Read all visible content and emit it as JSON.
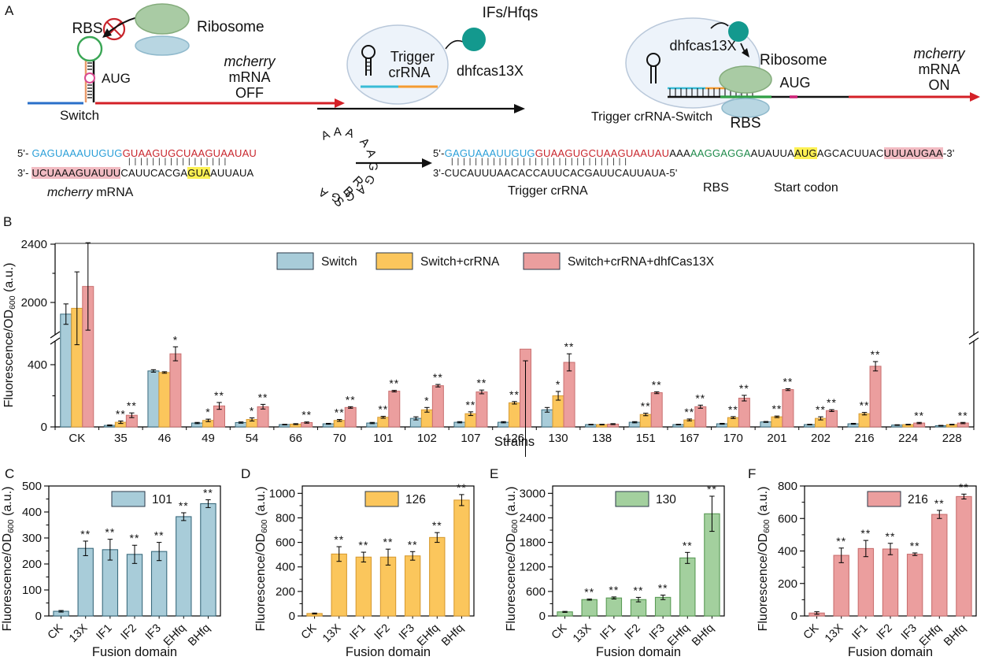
{
  "panels": {
    "a": "A",
    "b": "B",
    "c": "C",
    "d": "D",
    "e": "E",
    "f": "F"
  },
  "colors": {
    "switch_blue": "#a8ccd9",
    "crRNA_yellow": "#fbc65c",
    "cas13x_pink": "#eb9e9e",
    "bar_green": "#a3d09e",
    "edge_blue": "#3b6b7d",
    "edge_yellow": "#d89c33",
    "edge_pink": "#c97070",
    "edge_green": "#5a9a55",
    "seq_blue": "#2a9fd8",
    "seq_red": "#c8252c",
    "seq_green": "#1e8a4a",
    "hl_yellow": "#fdf153",
    "hl_pink": "#f2bcc3",
    "teal": "#13998e",
    "mrna_red": "#d42027",
    "leader_blue": "#2a6fc9",
    "orange": "#f59b31",
    "cyan": "#39bcd6"
  },
  "panelA": {
    "left": {
      "rbs": "RBS",
      "aug": "AUG",
      "switch_label": "Switch",
      "ribosome": "Ribosome",
      "mrna_state": [
        "mcherry",
        "mRNA",
        "OFF"
      ]
    },
    "middle": {
      "trigger1": "Trigger",
      "trigger2": "crRNA",
      "ifs": "IFs/Hfqs",
      "dhfcas": "dhfcas13X"
    },
    "right": {
      "dhfcas": "dhfcas13X",
      "ribosome": "Ribosome",
      "aug": "AUG",
      "rbs": "RBS",
      "complex": "Trigger crRNA-Switch",
      "mrna_state": [
        "mcherry",
        "mRNA",
        "ON"
      ]
    },
    "seqLeft": {
      "p5": "5'-",
      "p3": "3'-",
      "top_blue": "GAGUAAAUUGUG",
      "top_red": "GUAAGUGCUAAGUAAUAU",
      "pair": "|||||||||||||||||",
      "bot_pink": "UCUAAAGUAUUU",
      "bot_mid": "CAUUCACGA",
      "bot_yellow": "GUA",
      "bot_end": "AUUAUA",
      "mrna_italic": "mcherry",
      "mrna_rest": " mRNA",
      "loop_black": "AAA",
      "loop_green": "AAGGAGGA",
      "loop_rbs": "RBS"
    },
    "seqRight": {
      "p5": "5'-",
      "p3end": "-3'",
      "p3": "3'-",
      "p5end": "-5'",
      "top_blue": "GAGUAAAUUGUG",
      "top_red": "GUAAGUGCUAAGUAAUAU",
      "top_b1": "AAA",
      "top_green": "AAGGAGGA",
      "top_b2": "AUAUUA",
      "top_yellow": "AUG",
      "top_b3": "AGCACUUAC",
      "top_pink": "UUUAUGAA",
      "pair": "||||||||||||||||||||||||||||||",
      "bottom": "CUCAUUUAACACCAUUCACGAUUCAUUAUA",
      "trigger": "Trigger crRNA",
      "rbs": "RBS",
      "start": "Start codon"
    }
  },
  "chart_data": [
    {
      "id": "B",
      "type": "bar",
      "panel": "B",
      "xlabel": "Strains",
      "ylabel": [
        "Fluorescence/OD",
        "600",
        " (a.u.)"
      ],
      "broken_axis": {
        "yticks_lower": [
          0,
          400
        ],
        "yticks_upper": [
          2000,
          2400
        ],
        "lower_max": 557,
        "upper_min": 1778,
        "upper_max": 2430
      },
      "categories": [
        "CK",
        "35",
        "46",
        "49",
        "54",
        "66",
        "70",
        "101",
        "102",
        "107",
        "126",
        "130",
        "138",
        "151",
        "167",
        "170",
        "201",
        "202",
        "216",
        "224",
        "228"
      ],
      "series": [
        {
          "name": "Switch",
          "color_key": "blue",
          "values": [
            1920,
            10,
            360,
            25,
            28,
            15,
            20,
            25,
            55,
            30,
            30,
            110,
            15,
            30,
            15,
            20,
            32,
            15,
            20,
            12,
            8
          ],
          "errors": [
            70,
            3,
            8,
            4,
            4,
            2,
            3,
            4,
            10,
            4,
            4,
            15,
            2,
            4,
            2,
            3,
            3,
            2,
            3,
            2,
            2
          ],
          "sig": [
            null,
            null,
            null,
            null,
            null,
            null,
            null,
            null,
            null,
            null,
            null,
            null,
            null,
            null,
            null,
            null,
            null,
            null,
            null,
            null,
            null
          ]
        },
        {
          "name": "Switch+crRNA",
          "color_key": "yellow",
          "values": [
            1960,
            30,
            350,
            42,
            48,
            18,
            42,
            62,
            110,
            85,
            155,
            200,
            15,
            80,
            45,
            60,
            65,
            55,
            85,
            15,
            15
          ],
          "errors": [
            250,
            8,
            5,
            8,
            10,
            3,
            6,
            6,
            15,
            12,
            8,
            28,
            2,
            8,
            6,
            6,
            5,
            10,
            8,
            2,
            2
          ],
          "sig": [
            null,
            "**",
            null,
            "*",
            "*",
            null,
            "**",
            "**",
            "*",
            "**",
            "**",
            "*",
            null,
            "**",
            "**",
            "**",
            "**",
            "**",
            "**",
            null,
            null
          ]
        },
        {
          "name": "Switch+crRNA+dhfCas13X",
          "color_key": "pink",
          "values": [
            2110,
            75,
            470,
            135,
            130,
            28,
            125,
            230,
            265,
            225,
            500,
            415,
            18,
            220,
            130,
            185,
            240,
            105,
            390,
            25,
            25
          ],
          "errors": [
            300,
            15,
            45,
            22,
            15,
            4,
            5,
            5,
            8,
            12,
            75,
            55,
            3,
            6,
            10,
            18,
            6,
            6,
            30,
            4,
            4
          ],
          "sig": [
            null,
            "**",
            "*",
            "**",
            "**",
            "**",
            "**",
            "**",
            "**",
            "**",
            "**",
            "**",
            null,
            "**",
            "**",
            "**",
            "**",
            "**",
            "**",
            "**",
            "**"
          ]
        }
      ]
    },
    {
      "id": "C",
      "type": "bar",
      "panel": "C",
      "legend_label": "101",
      "xlabel": "Fusion domain",
      "ylabel": [
        "Fluorescence/OD",
        "600",
        " (a.u.)"
      ],
      "ylim": [
        0,
        500
      ],
      "yticks": [
        0,
        100,
        200,
        300,
        400,
        500
      ],
      "categories": [
        "CK",
        "13X",
        "IF1",
        "IF2",
        "IF3",
        "EHfq",
        "BHfq"
      ],
      "series": [
        {
          "name": "101",
          "color_key": "blue",
          "values": [
            18,
            260,
            255,
            237,
            248,
            382,
            432
          ],
          "errors": [
            3,
            28,
            40,
            35,
            35,
            15,
            15
          ],
          "sig": [
            null,
            "**",
            "**",
            "**",
            "**",
            "**",
            "**"
          ]
        }
      ]
    },
    {
      "id": "D",
      "type": "bar",
      "panel": "D",
      "legend_label": "126",
      "xlabel": "Fusion domain",
      "ylabel": [
        "Fluorescence/OD",
        "600",
        " (a.u.)"
      ],
      "ylim": [
        0,
        1060
      ],
      "yticks": [
        0,
        200,
        400,
        600,
        800,
        1000
      ],
      "categories": [
        "CK",
        "13X",
        "IF1",
        "IF2",
        "IF3",
        "EHfq",
        "BHfq"
      ],
      "series": [
        {
          "name": "126",
          "color_key": "yellow",
          "values": [
            20,
            505,
            480,
            480,
            490,
            640,
            945
          ],
          "errors": [
            4,
            60,
            40,
            65,
            35,
            40,
            45
          ],
          "sig": [
            null,
            "**",
            "**",
            "**",
            "**",
            "**",
            "**"
          ]
        }
      ]
    },
    {
      "id": "E",
      "type": "bar",
      "panel": "E",
      "legend_label": "130",
      "xlabel": "Fusion domain",
      "ylabel": [
        "Fluorescence/OD",
        "600",
        " (a.u.)"
      ],
      "ylim": [
        0,
        3180
      ],
      "yticks": [
        0,
        600,
        1200,
        1800,
        2400,
        3000
      ],
      "categories": [
        "CK",
        "13X",
        "IF1",
        "IF2",
        "IF3",
        "EHfq",
        "BHfq"
      ],
      "series": [
        {
          "name": "130",
          "color_key": "green",
          "values": [
            100,
            400,
            440,
            400,
            455,
            1420,
            2500
          ],
          "errors": [
            12,
            15,
            25,
            55,
            55,
            135,
            430
          ],
          "sig": [
            null,
            "**",
            "**",
            "**",
            "**",
            "**",
            "**"
          ]
        }
      ]
    },
    {
      "id": "F",
      "type": "bar",
      "panel": "F",
      "legend_label": "216",
      "xlabel": "Fusion domain",
      "ylabel": [
        "Fluorescence/OD",
        "600",
        " (a.u.)"
      ],
      "ylim": [
        0,
        800
      ],
      "yticks": [
        0,
        200,
        400,
        600,
        800
      ],
      "categories": [
        "CK",
        "13X",
        "IF1",
        "IF2",
        "IF3",
        "EHfq",
        "BHfq"
      ],
      "series": [
        {
          "name": "216",
          "color_key": "pink",
          "values": [
            18,
            373,
            415,
            412,
            380,
            625,
            735
          ],
          "errors": [
            8,
            45,
            50,
            35,
            8,
            25,
            15
          ],
          "sig": [
            null,
            "**",
            "**",
            "**",
            "**",
            "**",
            "**"
          ]
        }
      ]
    }
  ]
}
